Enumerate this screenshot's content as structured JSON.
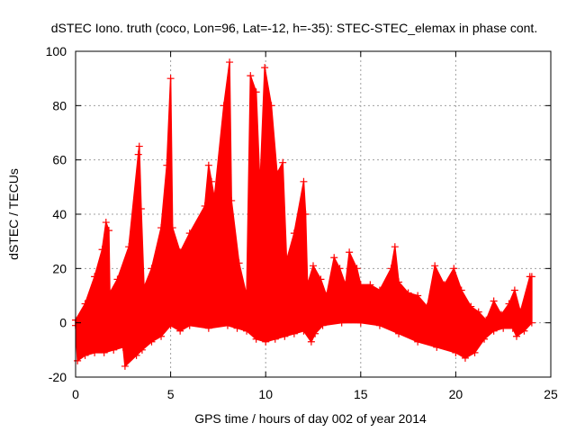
{
  "chart_data": {
    "type": "scatter",
    "title": "dSTEC Iono. truth (coco, Lon=96, Lat=-12, h=-35): STEC-STEC_elemax in phase cont.",
    "xlabel": "GPS time / hours of day 002 of year 2014",
    "ylabel": "dSTEC  / TECUs",
    "xlim": [
      0,
      25
    ],
    "ylim": [
      -20,
      100
    ],
    "xticks": [
      0,
      5,
      10,
      15,
      20,
      25
    ],
    "yticks": [
      -20,
      0,
      20,
      40,
      60,
      80,
      100
    ],
    "grid": true,
    "marker": "+",
    "color": "#ff0000",
    "upper_envelope": [
      [
        0.0,
        1
      ],
      [
        0.5,
        7
      ],
      [
        1.0,
        17
      ],
      [
        1.4,
        27
      ],
      [
        1.6,
        37
      ],
      [
        1.75,
        34
      ],
      [
        1.8,
        11
      ],
      [
        2.2,
        16
      ],
      [
        2.8,
        28
      ],
      [
        3.3,
        62
      ],
      [
        3.35,
        65
      ],
      [
        3.45,
        42
      ],
      [
        3.6,
        13
      ],
      [
        4.0,
        20
      ],
      [
        4.5,
        35
      ],
      [
        4.8,
        58
      ],
      [
        5.0,
        90
      ],
      [
        5.1,
        35
      ],
      [
        5.5,
        26
      ],
      [
        6.0,
        33
      ],
      [
        6.8,
        43
      ],
      [
        7.0,
        58
      ],
      [
        7.15,
        52
      ],
      [
        7.3,
        46
      ],
      [
        7.8,
        80
      ],
      [
        8.1,
        96
      ],
      [
        8.2,
        45
      ],
      [
        8.6,
        22
      ],
      [
        9.0,
        10
      ],
      [
        9.2,
        91
      ],
      [
        9.5,
        85
      ],
      [
        9.7,
        50
      ],
      [
        9.95,
        94
      ],
      [
        10.3,
        80
      ],
      [
        10.6,
        55
      ],
      [
        10.9,
        59
      ],
      [
        11.1,
        23
      ],
      [
        11.5,
        33
      ],
      [
        12.0,
        52
      ],
      [
        12.1,
        40
      ],
      [
        12.2,
        14
      ],
      [
        12.5,
        21
      ],
      [
        12.9,
        16
      ],
      [
        13.2,
        10
      ],
      [
        13.6,
        24
      ],
      [
        13.9,
        20
      ],
      [
        14.2,
        14
      ],
      [
        14.4,
        26
      ],
      [
        14.8,
        20
      ],
      [
        15.0,
        14
      ],
      [
        15.5,
        14
      ],
      [
        16.0,
        12
      ],
      [
        16.6,
        20
      ],
      [
        16.8,
        28
      ],
      [
        17.0,
        15
      ],
      [
        17.5,
        11
      ],
      [
        18.0,
        10
      ],
      [
        18.5,
        6
      ],
      [
        18.9,
        21
      ],
      [
        19.4,
        14
      ],
      [
        19.9,
        20
      ],
      [
        20.3,
        12
      ],
      [
        20.8,
        6
      ],
      [
        21.2,
        4
      ],
      [
        21.6,
        1
      ],
      [
        22.0,
        8
      ],
      [
        22.4,
        3
      ],
      [
        22.8,
        7
      ],
      [
        23.1,
        12
      ],
      [
        23.4,
        4
      ],
      [
        23.9,
        17
      ],
      [
        24.0,
        17
      ]
    ],
    "lower_envelope": [
      [
        0.0,
        -1
      ],
      [
        0.1,
        -14
      ],
      [
        0.5,
        -12
      ],
      [
        1.0,
        -11
      ],
      [
        1.5,
        -11
      ],
      [
        2.0,
        -10
      ],
      [
        2.5,
        -9
      ],
      [
        2.6,
        -16
      ],
      [
        3.2,
        -12
      ],
      [
        3.5,
        -10
      ],
      [
        4.0,
        -7
      ],
      [
        4.5,
        -5
      ],
      [
        5.0,
        -1
      ],
      [
        5.5,
        -3
      ],
      [
        6.0,
        -1
      ],
      [
        7.0,
        -2
      ],
      [
        8.0,
        -1
      ],
      [
        8.5,
        -2
      ],
      [
        9.0,
        -3
      ],
      [
        9.5,
        -6
      ],
      [
        10.0,
        -7
      ],
      [
        10.5,
        -6
      ],
      [
        11.0,
        -5
      ],
      [
        11.5,
        -4
      ],
      [
        12.0,
        -3
      ],
      [
        12.4,
        -7
      ],
      [
        12.6,
        -4
      ],
      [
        13.0,
        -1
      ],
      [
        14.0,
        0
      ],
      [
        15.0,
        0
      ],
      [
        16.0,
        -1
      ],
      [
        17.0,
        -4
      ],
      [
        18.0,
        -7
      ],
      [
        19.0,
        -9
      ],
      [
        20.0,
        -11
      ],
      [
        20.5,
        -13
      ],
      [
        21.0,
        -11
      ],
      [
        21.5,
        -6
      ],
      [
        22.0,
        -3
      ],
      [
        22.5,
        -2
      ],
      [
        23.0,
        -2
      ],
      [
        23.2,
        -5
      ],
      [
        23.6,
        -3
      ],
      [
        24.0,
        0
      ]
    ]
  }
}
